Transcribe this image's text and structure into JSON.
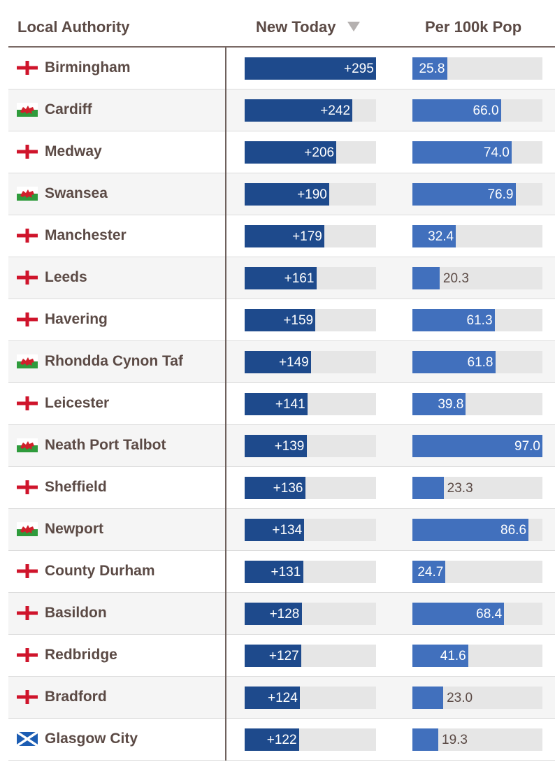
{
  "chart_data": {
    "type": "table",
    "columns": [
      "Local Authority",
      "New Today",
      "Per 100k Pop"
    ],
    "sort_column": "New Today",
    "sort_direction": "descending",
    "new_max": 295,
    "per_max": 97.0,
    "colors": {
      "new_bar": "#1e4a8c",
      "per_bar": "#4170bd",
      "track": "#e6e6e6",
      "text": "#5b4a45"
    },
    "rows": [
      {
        "name": "Birmingham",
        "nation": "england",
        "new_today": 295,
        "new_label": "+295",
        "per_100k": 25.8,
        "per_label": "25.8"
      },
      {
        "name": "Cardiff",
        "nation": "wales",
        "new_today": 242,
        "new_label": "+242",
        "per_100k": 66.0,
        "per_label": "66.0"
      },
      {
        "name": "Medway",
        "nation": "england",
        "new_today": 206,
        "new_label": "+206",
        "per_100k": 74.0,
        "per_label": "74.0"
      },
      {
        "name": "Swansea",
        "nation": "wales",
        "new_today": 190,
        "new_label": "+190",
        "per_100k": 76.9,
        "per_label": "76.9"
      },
      {
        "name": "Manchester",
        "nation": "england",
        "new_today": 179,
        "new_label": "+179",
        "per_100k": 32.4,
        "per_label": "32.4"
      },
      {
        "name": "Leeds",
        "nation": "england",
        "new_today": 161,
        "new_label": "+161",
        "per_100k": 20.3,
        "per_label": "20.3"
      },
      {
        "name": "Havering",
        "nation": "england",
        "new_today": 159,
        "new_label": "+159",
        "per_100k": 61.3,
        "per_label": "61.3"
      },
      {
        "name": "Rhondda Cynon Taf",
        "nation": "wales",
        "new_today": 149,
        "new_label": "+149",
        "per_100k": 61.8,
        "per_label": "61.8"
      },
      {
        "name": "Leicester",
        "nation": "england",
        "new_today": 141,
        "new_label": "+141",
        "per_100k": 39.8,
        "per_label": "39.8"
      },
      {
        "name": "Neath Port Talbot",
        "nation": "wales",
        "new_today": 139,
        "new_label": "+139",
        "per_100k": 97.0,
        "per_label": "97.0"
      },
      {
        "name": "Sheffield",
        "nation": "england",
        "new_today": 136,
        "new_label": "+136",
        "per_100k": 23.3,
        "per_label": "23.3"
      },
      {
        "name": "Newport",
        "nation": "wales",
        "new_today": 134,
        "new_label": "+134",
        "per_100k": 86.6,
        "per_label": "86.6"
      },
      {
        "name": "County Durham",
        "nation": "england",
        "new_today": 131,
        "new_label": "+131",
        "per_100k": 24.7,
        "per_label": "24.7"
      },
      {
        "name": "Basildon",
        "nation": "england",
        "new_today": 128,
        "new_label": "+128",
        "per_100k": 68.4,
        "per_label": "68.4"
      },
      {
        "name": "Redbridge",
        "nation": "england",
        "new_today": 127,
        "new_label": "+127",
        "per_100k": 41.6,
        "per_label": "41.6"
      },
      {
        "name": "Bradford",
        "nation": "england",
        "new_today": 124,
        "new_label": "+124",
        "per_100k": 23.0,
        "per_label": "23.0"
      },
      {
        "name": "Glasgow City",
        "nation": "scotland",
        "new_today": 122,
        "new_label": "+122",
        "per_100k": 19.3,
        "per_label": "19.3"
      }
    ]
  },
  "header": {
    "name_label": "Local Authority",
    "new_label": "New Today",
    "per_label": "Per 100k Pop",
    "sort_icon": "triangle-down-icon"
  }
}
